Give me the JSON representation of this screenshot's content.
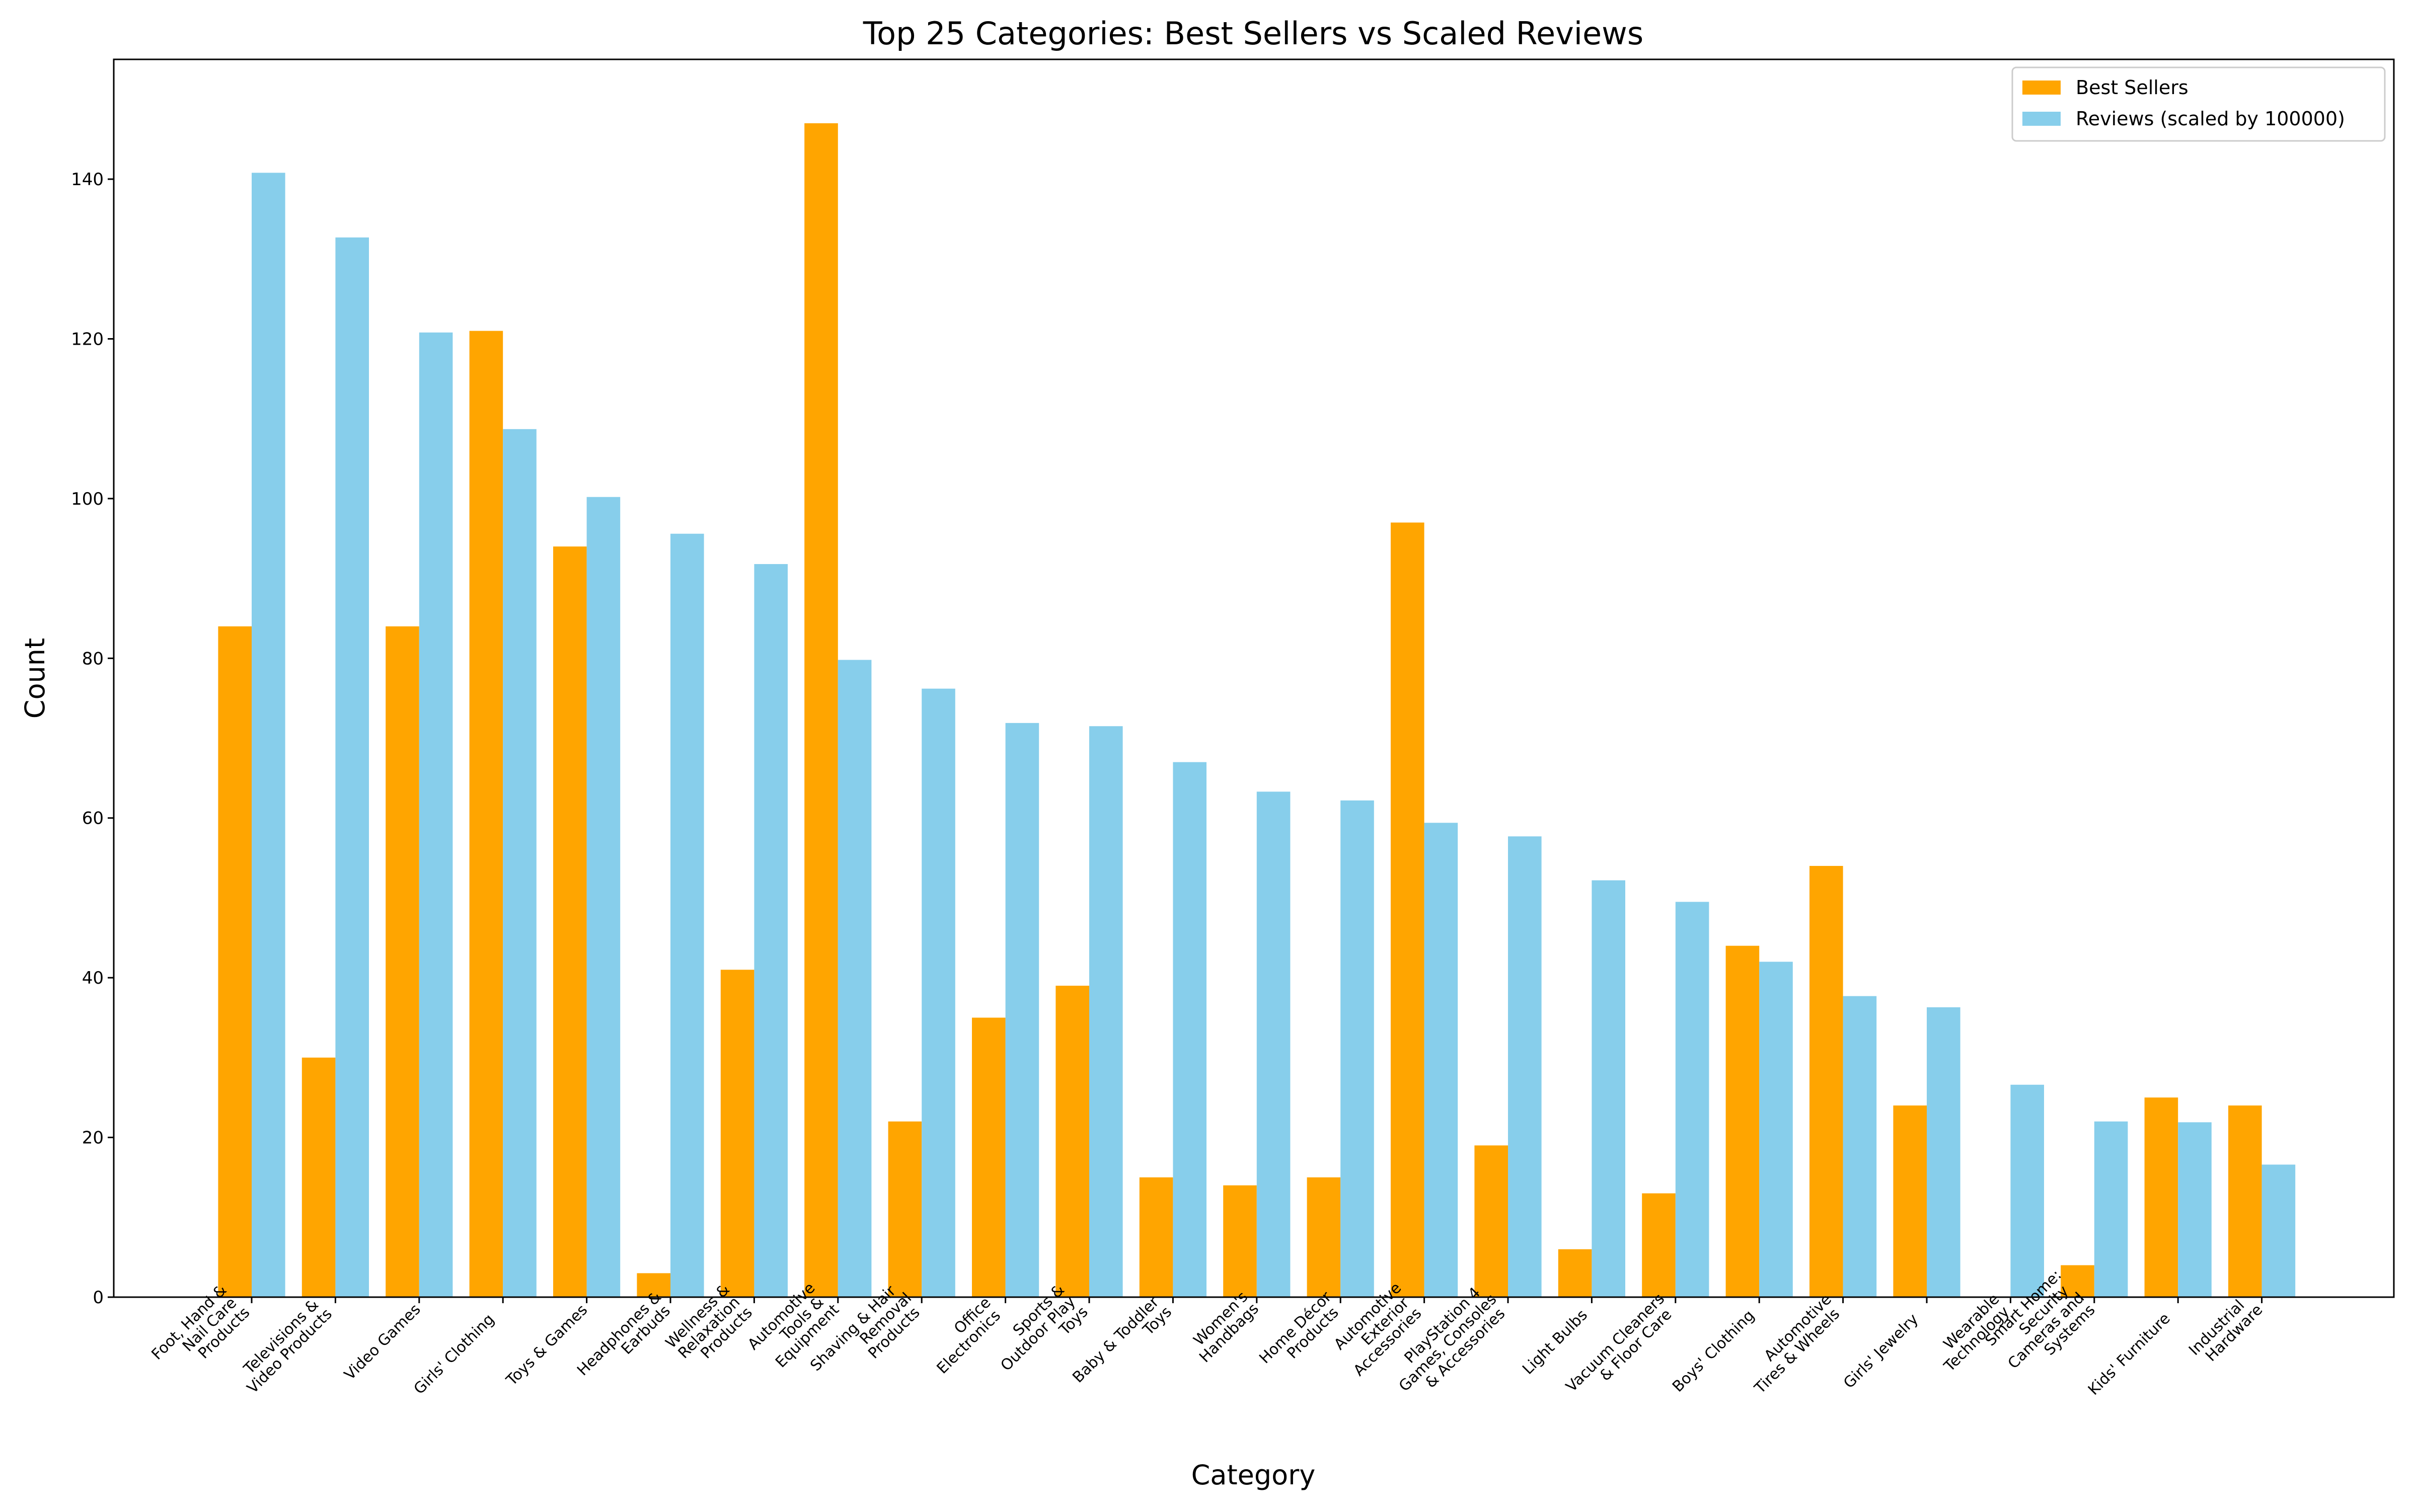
{
  "chart_data": {
    "type": "bar",
    "title": "Top 25 Categories: Best Sellers vs Scaled Reviews",
    "xlabel": "Category",
    "ylabel": "Count",
    "ylim": [
      0,
      155
    ],
    "yticks": [
      0,
      20,
      40,
      60,
      80,
      100,
      120,
      140
    ],
    "grid": false,
    "legend_position": "top-right",
    "categories": [
      "Foot, Hand & Nail Care Products",
      "Televisions & Video Products",
      "Video Games",
      "Girls' Clothing",
      "Toys & Games",
      "Headphones & Earbuds",
      "Wellness & Relaxation Products",
      "Automotive Tools & Equipment",
      "Shaving & Hair Removal Products",
      "Office Electronics",
      "Sports & Outdoor Play Toys",
      "Baby & Toddler Toys",
      "Women's Handbags",
      "Home Décor Products",
      "Automotive Exterior Accessories",
      "PlayStation 4 Games, Consoles & Accessories",
      "Light Bulbs",
      "Vacuum Cleaners & Floor Care",
      "Boys' Clothing",
      "Automotive Tires & Wheels",
      "Girls' Jewelry",
      "Wearable Technology",
      "Smart Home: Security Cameras and Systems",
      "Kids' Furniture",
      "Industrial Hardware"
    ],
    "category_label_lines": [
      [
        "Foot, Hand &",
        "Nail Care",
        "Products"
      ],
      [
        "Televisions &",
        "Video Products"
      ],
      [
        "Video Games"
      ],
      [
        "Girls' Clothing"
      ],
      [
        "Toys & Games"
      ],
      [
        "Headphones &",
        "Earbuds"
      ],
      [
        "Wellness &",
        "Relaxation",
        "Products"
      ],
      [
        "Automotive",
        "Tools &",
        "Equipment"
      ],
      [
        "Shaving & Hair",
        "Removal",
        "Products"
      ],
      [
        "Office",
        "Electronics"
      ],
      [
        "Sports &",
        "Outdoor Play",
        "Toys"
      ],
      [
        "Baby & Toddler",
        "Toys"
      ],
      [
        "Women's",
        "Handbags"
      ],
      [
        "Home Décor",
        "Products"
      ],
      [
        "Automotive",
        "Exterior",
        "Accessories"
      ],
      [
        "PlayStation 4",
        "Games, Consoles",
        "& Accessories"
      ],
      [
        "Light Bulbs"
      ],
      [
        "Vacuum Cleaners",
        "& Floor Care"
      ],
      [
        "Boys' Clothing"
      ],
      [
        "Automotive",
        "Tires & Wheels"
      ],
      [
        "Girls' Jewelry"
      ],
      [
        "Wearable",
        "Technology"
      ],
      [
        "Smart Home:",
        "Security",
        "Cameras and",
        "Systems"
      ],
      [
        "Kids' Furniture"
      ],
      [
        "Industrial",
        "Hardware"
      ]
    ],
    "series": [
      {
        "name": "Best Sellers",
        "color": "#FFA500",
        "values": [
          84,
          30,
          84,
          121,
          94,
          3,
          41,
          147,
          22,
          35,
          39,
          15,
          14,
          15,
          97,
          19,
          6,
          13,
          44,
          54,
          24,
          0,
          4,
          25,
          24
        ]
      },
      {
        "name": "Reviews (scaled by 100000)",
        "color": "#87CEEB",
        "values": [
          140.8,
          132.7,
          120.8,
          108.7,
          100.2,
          95.6,
          91.8,
          79.8,
          76.2,
          71.9,
          71.5,
          67.0,
          63.3,
          62.2,
          59.4,
          57.7,
          52.2,
          49.5,
          42.0,
          37.7,
          36.3,
          26.6,
          22.0,
          21.9,
          16.6
        ]
      }
    ]
  }
}
